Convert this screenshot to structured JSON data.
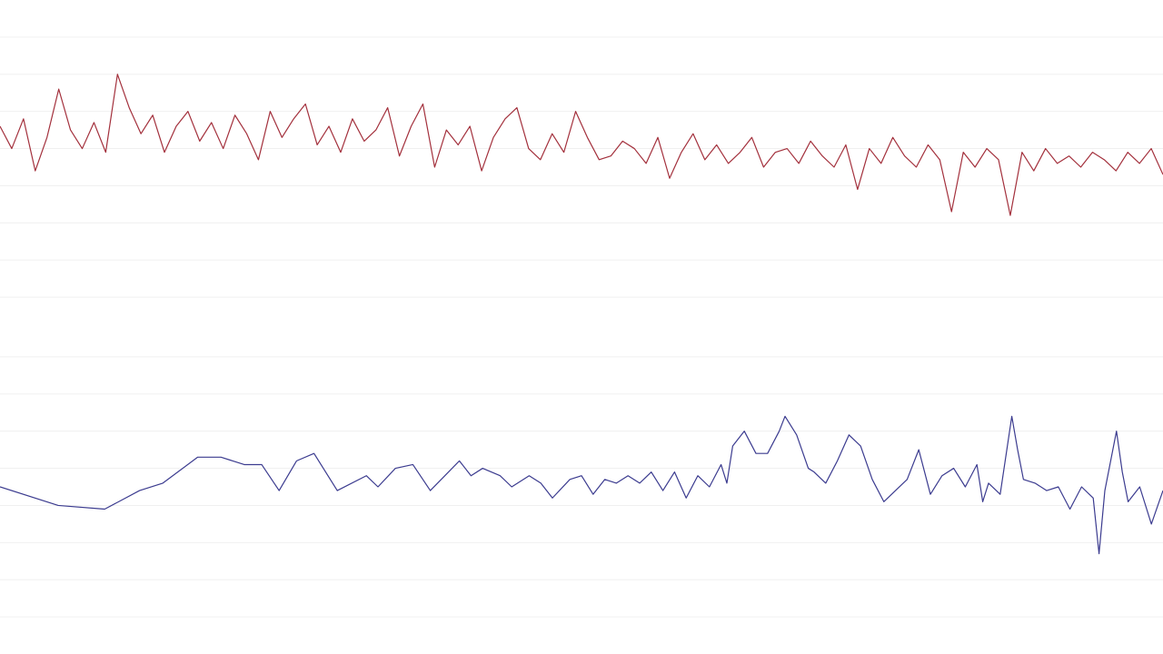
{
  "chart_data": [
    {
      "type": "line",
      "color": "#a3303c",
      "grid": true,
      "xlim": [
        0,
        99
      ],
      "ylim": [
        0,
        9
      ],
      "yticks": [
        1,
        2,
        3,
        4,
        5,
        6,
        7,
        8
      ],
      "x": [
        0,
        1,
        2,
        3,
        4,
        5,
        6,
        7,
        8,
        9,
        10,
        11,
        12,
        13,
        14,
        15,
        16,
        17,
        18,
        19,
        20,
        21,
        22,
        23,
        24,
        25,
        26,
        27,
        28,
        29,
        30,
        31,
        32,
        33,
        34,
        35,
        36,
        37,
        38,
        39,
        40,
        41,
        42,
        43,
        44,
        45,
        46,
        47,
        48,
        49,
        50,
        51,
        52,
        53,
        54,
        55,
        56,
        57,
        58,
        59,
        60,
        61,
        62,
        63,
        64,
        65,
        66,
        67,
        68,
        69,
        70,
        71,
        72,
        73,
        74,
        75,
        76,
        77,
        78,
        79,
        80,
        81,
        82,
        83,
        84,
        85,
        86,
        87,
        88,
        89,
        90,
        91,
        92,
        93,
        94,
        95,
        96,
        97,
        98,
        99
      ],
      "values": [
        5.6,
        5.0,
        5.8,
        4.4,
        5.3,
        6.6,
        5.5,
        5.0,
        5.7,
        4.9,
        7.0,
        6.1,
        5.4,
        5.9,
        4.9,
        5.6,
        6.0,
        5.2,
        5.7,
        5.0,
        5.9,
        5.4,
        4.7,
        6.0,
        5.3,
        5.8,
        6.2,
        5.1,
        5.6,
        4.9,
        5.8,
        5.2,
        5.5,
        6.1,
        4.8,
        5.6,
        6.2,
        4.5,
        5.5,
        5.1,
        5.6,
        4.4,
        5.3,
        5.8,
        6.1,
        5.0,
        4.7,
        5.4,
        4.9,
        6.0,
        5.3,
        4.7,
        4.8,
        5.2,
        5.0,
        4.6,
        5.3,
        4.2,
        4.9,
        5.4,
        4.7,
        5.1,
        4.6,
        4.9,
        5.3,
        4.5,
        4.9,
        5.0,
        4.6,
        5.2,
        4.8,
        4.5,
        5.1,
        3.9,
        5.0,
        4.6,
        5.3,
        4.8,
        4.5,
        5.1,
        4.7,
        3.3,
        4.9,
        4.5,
        5.0,
        4.7,
        3.2,
        4.9,
        4.4,
        5.0,
        4.6,
        4.8,
        4.5,
        4.9,
        4.7,
        4.4,
        4.9,
        4.6,
        5.0,
        4.3
      ]
    },
    {
      "type": "line",
      "color": "#3b3b8f",
      "grid": true,
      "xlim": [
        0,
        100
      ],
      "ylim": [
        0,
        9
      ],
      "yticks": [
        1,
        2,
        3,
        4,
        5,
        6,
        7,
        8
      ],
      "x": [
        0,
        5,
        9,
        12,
        14,
        17,
        19,
        21,
        22.5,
        24,
        25.5,
        27,
        29,
        31.5,
        32.5,
        34,
        35.5,
        37,
        39.5,
        40.5,
        41.5,
        43,
        44,
        45.5,
        46.5,
        47.5,
        49,
        50,
        51,
        52,
        53,
        54,
        55,
        56,
        57,
        58,
        59,
        60,
        61,
        62,
        62.5,
        63,
        64,
        65,
        66,
        67,
        67.5,
        68.5,
        69.5,
        70,
        71,
        72,
        73,
        74,
        75,
        76,
        77,
        78,
        79,
        80,
        81,
        82,
        83,
        84,
        84.5,
        85,
        86,
        87,
        87.5,
        88,
        89,
        90,
        91,
        92,
        93,
        94,
        94.5,
        95,
        96,
        96.5,
        97,
        98,
        99,
        100
      ],
      "values": [
        4.5,
        4.0,
        3.9,
        4.4,
        4.6,
        5.3,
        5.3,
        5.1,
        5.1,
        4.4,
        5.2,
        5.4,
        4.4,
        4.8,
        4.5,
        5.0,
        5.1,
        4.4,
        5.2,
        4.8,
        5.0,
        4.8,
        4.5,
        4.8,
        4.6,
        4.2,
        4.7,
        4.8,
        4.3,
        4.7,
        4.6,
        4.8,
        4.6,
        4.9,
        4.4,
        4.9,
        4.2,
        4.8,
        4.5,
        5.1,
        4.6,
        5.6,
        6.0,
        5.4,
        5.4,
        6.0,
        6.4,
        5.9,
        5.0,
        4.9,
        4.6,
        5.2,
        5.9,
        5.6,
        4.7,
        4.1,
        4.4,
        4.7,
        5.5,
        4.3,
        4.8,
        5.0,
        4.5,
        5.1,
        4.1,
        4.6,
        4.3,
        6.4,
        5.5,
        4.7,
        4.6,
        4.4,
        4.5,
        3.9,
        4.5,
        4.2,
        2.7,
        4.4,
        6.0,
        4.9,
        4.1,
        4.5,
        3.5,
        4.4
      ]
    }
  ]
}
